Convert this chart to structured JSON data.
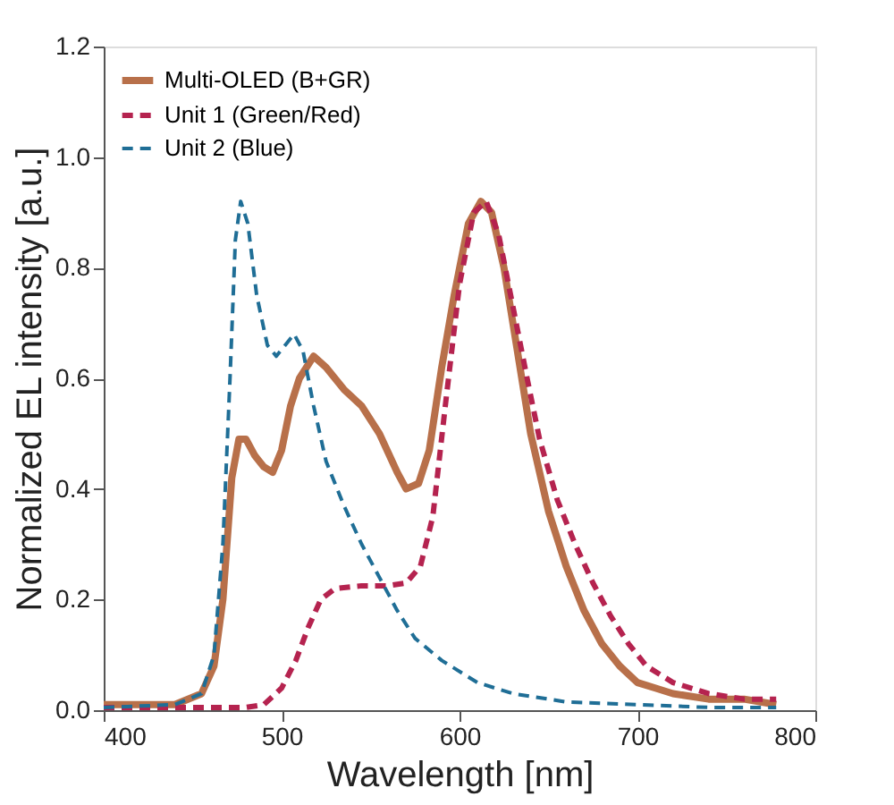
{
  "chart_data": {
    "type": "line",
    "xlabel": "Wavelength [nm]",
    "ylabel": "Normalized EL intensity [a.u.]",
    "xlim": [
      400,
      800
    ],
    "ylim": [
      0,
      1.2
    ],
    "xticks": [
      400,
      500,
      600,
      700,
      800
    ],
    "yticks": [
      {
        "value": 0,
        "label": "0.0"
      },
      0.2,
      0.4,
      0.6,
      0.8,
      {
        "value": 1,
        "label": "1.0"
      },
      1.2
    ],
    "grid": false,
    "legend": "top left",
    "series": [
      {
        "name": "Multi-OLED (B+GR)",
        "color": "#b8704a",
        "line_style": "solid",
        "x": [
          400,
          440,
          455,
          462,
          467,
          472,
          476,
          480,
          485,
          490,
          495,
          500,
          505,
          510,
          518,
          525,
          535,
          545,
          555,
          565,
          570,
          577,
          583,
          590,
          597,
          605,
          612,
          618,
          625,
          632,
          640,
          650,
          660,
          670,
          680,
          690,
          700,
          710,
          720,
          740,
          760,
          778
        ],
        "values": [
          0.01,
          0.01,
          0.03,
          0.08,
          0.2,
          0.42,
          0.49,
          0.49,
          0.46,
          0.44,
          0.43,
          0.47,
          0.55,
          0.6,
          0.64,
          0.62,
          0.58,
          0.55,
          0.5,
          0.43,
          0.4,
          0.41,
          0.47,
          0.62,
          0.75,
          0.88,
          0.92,
          0.9,
          0.8,
          0.66,
          0.5,
          0.36,
          0.26,
          0.18,
          0.12,
          0.08,
          0.05,
          0.04,
          0.03,
          0.02,
          0.02,
          0.01
        ]
      },
      {
        "name": "Unit 1 (Green/Red)",
        "color": "#b5234f",
        "line_style": "dashed",
        "x": [
          400,
          480,
          490,
          500,
          508,
          515,
          522,
          530,
          545,
          560,
          570,
          578,
          585,
          592,
          600,
          608,
          615,
          622,
          630,
          638,
          645,
          655,
          665,
          675,
          685,
          695,
          705,
          720,
          740,
          760,
          778
        ],
        "values": [
          0.005,
          0.005,
          0.01,
          0.04,
          0.09,
          0.15,
          0.2,
          0.22,
          0.225,
          0.225,
          0.23,
          0.26,
          0.35,
          0.55,
          0.77,
          0.9,
          0.92,
          0.86,
          0.73,
          0.6,
          0.49,
          0.38,
          0.3,
          0.23,
          0.17,
          0.12,
          0.08,
          0.05,
          0.03,
          0.02,
          0.02
        ]
      },
      {
        "name": "Unit 2 (Blue)",
        "color": "#1f6e96",
        "line_style": "dashed",
        "x": [
          400,
          440,
          455,
          462,
          467,
          471,
          474,
          477,
          481,
          486,
          492,
          497,
          502,
          507,
          512,
          518,
          525,
          535,
          545,
          555,
          565,
          575,
          590,
          610,
          630,
          660,
          700,
          740,
          778
        ],
        "values": [
          0.005,
          0.01,
          0.03,
          0.1,
          0.3,
          0.6,
          0.85,
          0.92,
          0.88,
          0.75,
          0.66,
          0.64,
          0.66,
          0.68,
          0.65,
          0.55,
          0.45,
          0.37,
          0.3,
          0.24,
          0.18,
          0.13,
          0.09,
          0.05,
          0.03,
          0.015,
          0.01,
          0.005,
          0.005
        ]
      }
    ]
  }
}
